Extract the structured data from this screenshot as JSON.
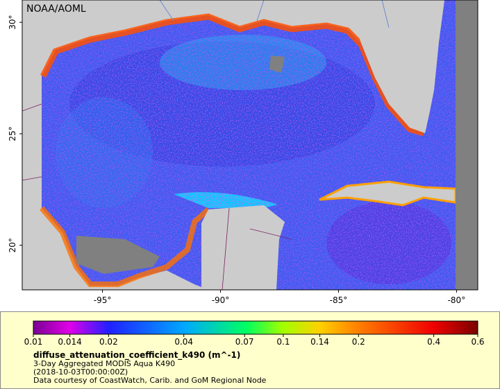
{
  "map": {
    "watermark": "NOAA/AOML",
    "lat_range": [
      31,
      18
    ],
    "lon_range": [
      -98.4,
      -79.1
    ],
    "lat_ticks": [
      {
        "value": 30,
        "label": "30°"
      },
      {
        "value": 25,
        "label": "25°"
      },
      {
        "value": 20,
        "label": "20°"
      }
    ],
    "lon_ticks": [
      {
        "value": -95,
        "label": "-95°"
      },
      {
        "value": -90,
        "label": "-90°"
      },
      {
        "value": -85,
        "label": "-85°"
      },
      {
        "value": -80,
        "label": "-80°"
      }
    ]
  },
  "colorbar": {
    "scale": "log",
    "range": [
      0.01,
      0.6
    ],
    "ticks": [
      0.01,
      0.014,
      0.02,
      0.04,
      0.07,
      0.1,
      0.14,
      0.2,
      0.4,
      0.6
    ],
    "title": "diffuse_attenuation_coefficient_k490 (m^-1)",
    "lines": [
      "3-Day Aggregated MODIS Aqua K490",
      "(2018-10-03T00:00:00Z)",
      "Data courtesy of CoastWatch, Carib. and GoM Regional Node"
    ]
  }
}
